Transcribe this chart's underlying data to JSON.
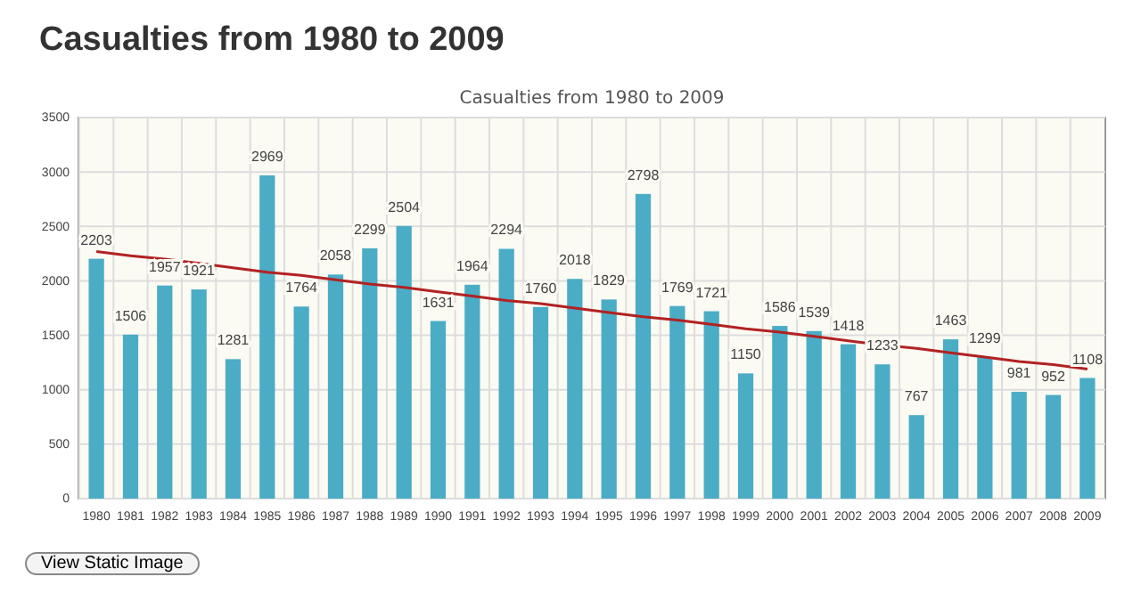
{
  "chart_data": {
    "type": "bar",
    "title": "Casualties from 1980 to 2009",
    "subtitle": "Casualties from 1980 to 2009",
    "categories": [
      "1980",
      "1981",
      "1982",
      "1983",
      "1984",
      "1985",
      "1986",
      "1987",
      "1988",
      "1989",
      "1990",
      "1991",
      "1992",
      "1993",
      "1994",
      "1995",
      "1996",
      "1997",
      "1998",
      "1999",
      "2000",
      "2001",
      "2002",
      "2003",
      "2004",
      "2005",
      "2006",
      "2007",
      "2008",
      "2009"
    ],
    "series": [
      {
        "color": "#4bacc6",
        "values": [
          2203,
          1506,
          1957,
          1921,
          1281,
          2969,
          1764,
          2058,
          2299,
          2504,
          1631,
          1964,
          2294,
          1760,
          2018,
          1829,
          2798,
          1769,
          1721,
          1150,
          1586,
          1539,
          1418,
          1233,
          767,
          1463,
          1299,
          981,
          952,
          1108
        ],
        "value_labels": [
          "2203",
          "1506",
          "1957",
          "1921",
          "1281",
          "2969",
          "1764",
          "2058",
          "2299",
          "2504",
          "1631",
          "1964",
          "2294",
          "1760",
          "2018",
          "1829",
          "2798",
          "1769",
          "1721",
          "1150",
          "1586",
          "1539",
          "1418",
          "1233",
          "767",
          "1463",
          "1299",
          "981",
          "952",
          "1108"
        ]
      },
      {
        "type": "line",
        "color": "#b22222",
        "values": [
          2270,
          2230,
          2200,
          2160,
          2120,
          2080,
          2050,
          2010,
          1970,
          1940,
          1900,
          1860,
          1820,
          1790,
          1750,
          1710,
          1670,
          1640,
          1600,
          1560,
          1530,
          1490,
          1450,
          1410,
          1380,
          1340,
          1300,
          1260,
          1230,
          1190
        ]
      }
    ],
    "ylim": [
      0,
      3500
    ],
    "yticks": [
      0,
      500,
      1000,
      1500,
      2000,
      2500,
      3000,
      3500
    ],
    "grid": true,
    "annotations": [
      "View Static Image"
    ]
  }
}
